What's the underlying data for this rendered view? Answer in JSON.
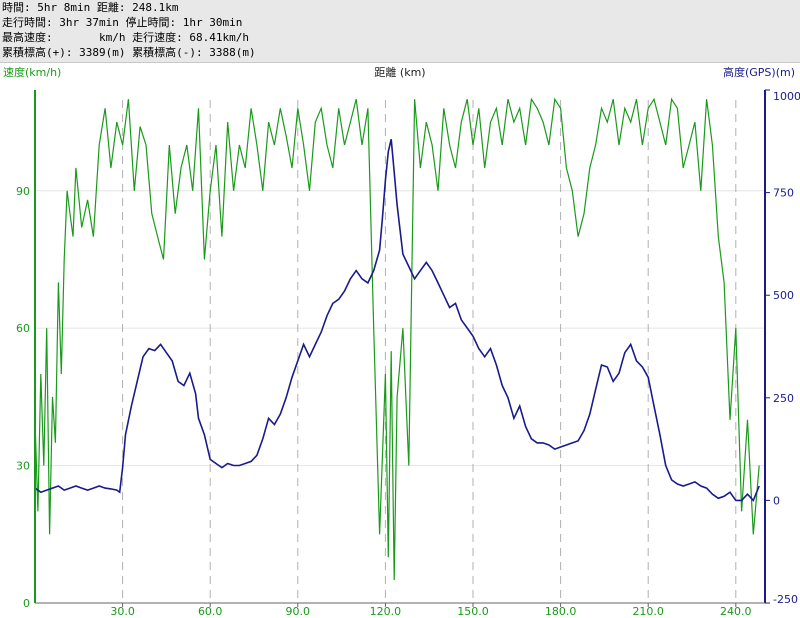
{
  "header": {
    "line1": "時間: 5hr 8min 距離: 248.1km",
    "line2": "走行時間: 3hr 37min 停止時間: 1hr 30min",
    "line3": "最高速度:       km/h 走行速度: 68.41km/h",
    "line4": "累積標高(+): 3389(m) 累積標高(-): 3388(m)"
  },
  "chart_data": {
    "type": "line",
    "title": "",
    "xlabel": "距離 (km)",
    "ylabel_left": "速度(km/h)",
    "ylabel_right": "高度(GPS)(m)",
    "xlim": [
      0,
      250
    ],
    "ylim_left": [
      0,
      112
    ],
    "ylim_right": [
      -250,
      1000
    ],
    "x_ticks": [
      "30.0",
      "60.0",
      "90.0",
      "120.0",
      "150.0",
      "180.0",
      "210.0",
      "240.0"
    ],
    "x_tick_values": [
      30,
      60,
      90,
      120,
      150,
      180,
      210,
      240
    ],
    "y_left_ticks": [
      "0",
      "30",
      "60",
      "90"
    ],
    "y_left_tick_values": [
      0,
      30,
      60,
      90
    ],
    "y_right_ticks": [
      "-250",
      "0",
      "250",
      "500",
      "750",
      "1000"
    ],
    "y_right_tick_values": [
      -250,
      0,
      250,
      500,
      750,
      1000
    ],
    "grid": true,
    "colors": {
      "speed": "#1a9a1a",
      "altitude": "#1a1a8c",
      "left_axis": "#1a9a1a",
      "right_axis": "#1a1a8c",
      "grid": "#b0b0b0"
    },
    "series": [
      {
        "axis": "right",
        "x": [
          0,
          2,
          4,
          6,
          8,
          10,
          12,
          14,
          16,
          18,
          20,
          22,
          24,
          26,
          28,
          29,
          30,
          31,
          33,
          35,
          37,
          39,
          41,
          43,
          45,
          47,
          49,
          51,
          53,
          55,
          56,
          58,
          60,
          62,
          64,
          66,
          68,
          70,
          72,
          74,
          76,
          78,
          80,
          82,
          84,
          86,
          88,
          90,
          92,
          94,
          96,
          98,
          100,
          102,
          104,
          106,
          108,
          110,
          112,
          114,
          116,
          118,
          119,
          120,
          121,
          122,
          123,
          124,
          126,
          128,
          130,
          132,
          134,
          136,
          138,
          140,
          142,
          144,
          146,
          148,
          150,
          152,
          154,
          156,
          158,
          160,
          162,
          164,
          166,
          168,
          170,
          172,
          174,
          176,
          178,
          180,
          182,
          184,
          186,
          188,
          190,
          192,
          194,
          196,
          198,
          200,
          202,
          204,
          206,
          208,
          210,
          212,
          214,
          216,
          218,
          220,
          222,
          224,
          226,
          228,
          230,
          232,
          234,
          236,
          238,
          240,
          242,
          244,
          246,
          248
        ],
        "y": [
          30,
          20,
          25,
          30,
          35,
          25,
          30,
          35,
          30,
          25,
          30,
          35,
          30,
          28,
          25,
          20,
          80,
          160,
          230,
          290,
          350,
          370,
          365,
          380,
          360,
          340,
          290,
          280,
          310,
          260,
          200,
          160,
          100,
          90,
          80,
          90,
          85,
          85,
          90,
          95,
          110,
          150,
          200,
          185,
          210,
          250,
          300,
          340,
          380,
          350,
          380,
          410,
          450,
          480,
          490,
          510,
          540,
          560,
          540,
          530,
          560,
          610,
          690,
          780,
          850,
          880,
          800,
          720,
          600,
          570,
          540,
          560,
          580,
          560,
          530,
          500,
          470,
          480,
          440,
          420,
          400,
          370,
          350,
          370,
          330,
          280,
          250,
          200,
          230,
          180,
          150,
          140,
          140,
          135,
          125,
          130,
          135,
          140,
          145,
          170,
          210,
          270,
          330,
          325,
          290,
          310,
          360,
          380,
          340,
          325,
          300,
          230,
          160,
          85,
          50,
          40,
          35,
          40,
          45,
          35,
          30,
          15,
          5,
          10,
          20,
          0,
          0,
          15,
          0,
          35
        ],
        "name": ""
      },
      {
        "axis": "left",
        "x": [
          0,
          1,
          2,
          3,
          4,
          5,
          6,
          7,
          8,
          9,
          10,
          11,
          12,
          13,
          14,
          16,
          18,
          20,
          22,
          24,
          26,
          28,
          30,
          32,
          34,
          36,
          38,
          40,
          42,
          44,
          46,
          48,
          50,
          52,
          54,
          56,
          58,
          60,
          62,
          64,
          66,
          68,
          70,
          72,
          74,
          76,
          78,
          80,
          82,
          84,
          86,
          88,
          90,
          92,
          94,
          96,
          98,
          100,
          102,
          104,
          106,
          108,
          110,
          112,
          114,
          116,
          118,
          120,
          121,
          122,
          123,
          124,
          126,
          128,
          130,
          132,
          134,
          136,
          138,
          140,
          142,
          144,
          146,
          148,
          150,
          152,
          154,
          156,
          158,
          160,
          162,
          164,
          166,
          168,
          170,
          172,
          174,
          176,
          178,
          180,
          182,
          184,
          186,
          188,
          190,
          192,
          194,
          196,
          198,
          200,
          202,
          204,
          206,
          208,
          210,
          212,
          214,
          216,
          218,
          220,
          222,
          224,
          226,
          228,
          230,
          232,
          234,
          236,
          238,
          240,
          242,
          244,
          246,
          248
        ],
        "y": [
          40,
          20,
          50,
          30,
          60,
          15,
          45,
          35,
          70,
          50,
          75,
          90,
          85,
          80,
          95,
          82,
          88,
          80,
          100,
          108,
          95,
          105,
          100,
          110,
          90,
          104,
          100,
          85,
          80,
          75,
          100,
          85,
          95,
          100,
          90,
          108,
          75,
          90,
          100,
          80,
          105,
          90,
          100,
          95,
          108,
          100,
          90,
          105,
          100,
          108,
          102,
          95,
          108,
          100,
          90,
          105,
          108,
          100,
          95,
          108,
          100,
          105,
          110,
          100,
          108,
          60,
          15,
          50,
          10,
          55,
          5,
          45,
          60,
          30,
          110,
          95,
          105,
          100,
          90,
          108,
          100,
          95,
          105,
          110,
          100,
          108,
          95,
          105,
          108,
          100,
          110,
          105,
          108,
          100,
          110,
          108,
          105,
          100,
          110,
          108,
          95,
          90,
          80,
          85,
          95,
          100,
          108,
          105,
          110,
          100,
          108,
          105,
          110,
          100,
          108,
          110,
          105,
          100,
          110,
          108,
          95,
          100,
          105,
          90,
          110,
          100,
          80,
          70,
          40,
          60,
          20,
          40,
          15,
          30
        ],
        "name": ""
      }
    ]
  }
}
